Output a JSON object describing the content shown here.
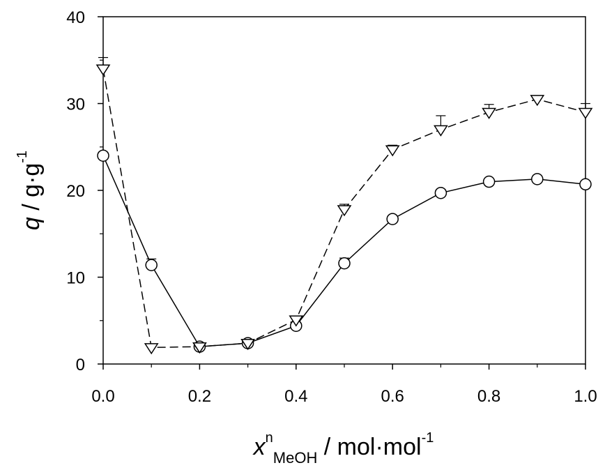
{
  "chart_data": {
    "type": "line",
    "x": [
      0.0,
      0.1,
      0.2,
      0.3,
      0.4,
      0.5,
      0.6,
      0.7,
      0.8,
      0.9,
      1.0
    ],
    "xlim": [
      0,
      1.0
    ],
    "ylim": [
      0,
      40
    ],
    "xticks": [
      0.0,
      0.2,
      0.4,
      0.6,
      0.8,
      1.0
    ],
    "xtick_labels": [
      "0.0",
      "0.2",
      "0.4",
      "0.6",
      "0.8",
      "1.0"
    ],
    "yticks": [
      0,
      10,
      20,
      30,
      40
    ],
    "ytick_labels": [
      "0",
      "10",
      "20",
      "30",
      "40"
    ],
    "grid": false,
    "xlabel": {
      "main": "x",
      "sup": "n",
      "sub": "MeOH",
      "unit": " / mol·mol",
      "unit_sup": "-1"
    },
    "ylabel": {
      "main": "q",
      "unit": " / g·g",
      "unit_sup": "-1"
    },
    "series": [
      {
        "marker": "circle",
        "line_style": "solid",
        "x": [
          0.0,
          0.1,
          0.2,
          0.3,
          0.4,
          0.5,
          0.6,
          0.7,
          0.8,
          0.9,
          1.0
        ],
        "y": [
          24.0,
          11.4,
          2.0,
          2.4,
          4.4,
          11.6,
          16.7,
          19.7,
          21.0,
          21.3,
          20.7
        ],
        "error": [
          0.4,
          0.7,
          0.3,
          0.3,
          0.4,
          0.6,
          0.3,
          0.3,
          0.3,
          0.3,
          0.3
        ]
      },
      {
        "marker": "triangle-down",
        "line_style": "dashed",
        "x": [
          0.0,
          0.1,
          0.2,
          0.3,
          0.4,
          0.5,
          0.6,
          0.7,
          0.8,
          0.9,
          1.0
        ],
        "y": [
          34.0,
          1.9,
          2.0,
          2.4,
          5.1,
          17.8,
          24.7,
          27.0,
          29.0,
          30.5,
          29.0
        ],
        "error": [
          1.3,
          0.2,
          0.2,
          0.2,
          0.3,
          0.6,
          0.5,
          1.6,
          0.9,
          0.3,
          1.0
        ]
      }
    ]
  }
}
